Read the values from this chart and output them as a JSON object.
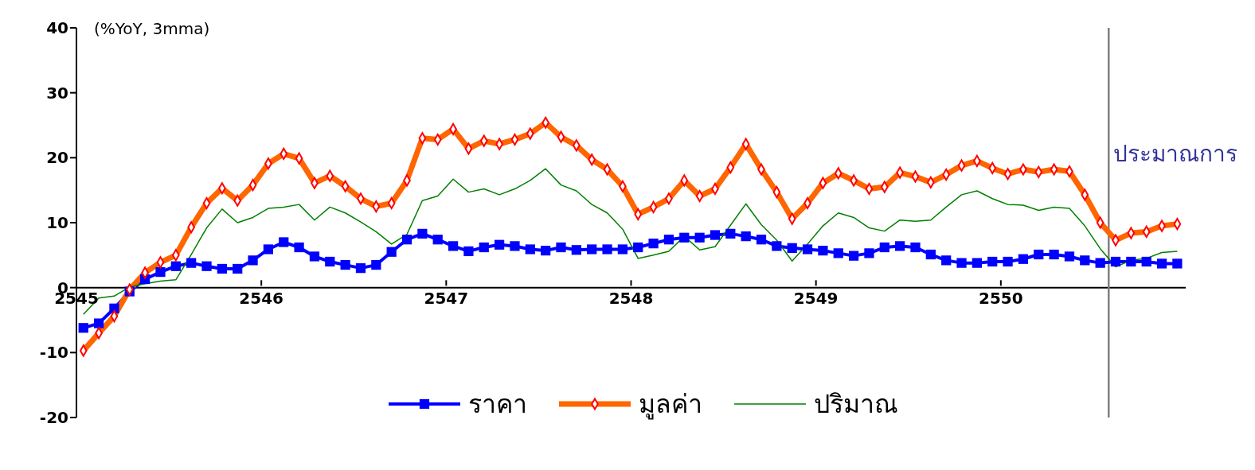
{
  "chart_data": {
    "type": "line",
    "ylabel": "(%YoY, 3mma)",
    "x": [
      "2545-01-15",
      "2545-02-15",
      "2545-03-15",
      "2545-04-15",
      "2545-05-15",
      "2545-06-15",
      "2545-07-15",
      "2545-08-15",
      "2545-09-15",
      "2545-10-15",
      "2545-11-15",
      "2545-12-15",
      "2546-01-15",
      "2546-02-15",
      "2546-03-15",
      "2546-04-15",
      "2546-05-15",
      "2546-06-15",
      "2546-07-15",
      "2546-08-15",
      "2546-09-15",
      "2546-10-15",
      "2546-11-15",
      "2546-12-15",
      "2547-01-15",
      "2547-02-15",
      "2547-03-15",
      "2547-04-15",
      "2547-05-15",
      "2547-06-15",
      "2547-07-15",
      "2547-08-15",
      "2547-09-15",
      "2547-10-15",
      "2547-11-15",
      "2547-12-15",
      "2548-01-15",
      "2548-02-15",
      "2548-03-15",
      "2548-04-15",
      "2548-05-15",
      "2548-06-15",
      "2548-07-15",
      "2548-08-15",
      "2548-09-15",
      "2548-10-15",
      "2548-11-15",
      "2548-12-15",
      "2549-01-15",
      "2549-02-15",
      "2549-03-15",
      "2549-04-15",
      "2549-05-15",
      "2549-06-15",
      "2549-07-15",
      "2549-08-15",
      "2549-09-15",
      "2549-10-15",
      "2549-11-15",
      "2549-12-15",
      "2550-01-15",
      "2550-02-15",
      "2550-03-15",
      "2550-04-15",
      "2550-05-15",
      "2550-06-15",
      "2550-07-15",
      "2550-08-15",
      "2550-09-15",
      "2550-10-15",
      "2550-11-15",
      "2550-12-15"
    ],
    "series": [
      {
        "name": "ราคา",
        "color": "#0000ff",
        "marker": "square",
        "values": [
          -6.2,
          -5.5,
          -3.2,
          -0.6,
          1.3,
          2.4,
          3.3,
          3.8,
          3.3,
          2.9,
          2.9,
          4.2,
          5.9,
          7.0,
          6.2,
          4.8,
          4.0,
          3.5,
          3.0,
          3.5,
          5.5,
          7.4,
          8.3,
          7.4,
          6.4,
          5.6,
          6.2,
          6.6,
          6.4,
          5.9,
          5.7,
          6.2,
          5.8,
          5.9,
          5.9,
          5.9,
          6.2,
          6.8,
          7.4,
          7.7,
          7.7,
          8.1,
          8.3,
          7.9,
          7.4,
          6.4,
          6.1,
          5.9,
          5.7,
          5.3,
          4.9,
          5.3,
          6.2,
          6.4,
          6.2,
          5.1,
          4.2,
          3.8,
          3.8,
          4.0,
          4.0,
          4.4,
          5.1,
          5.1,
          4.8,
          4.2,
          3.8,
          4.0,
          4.0,
          4.0,
          3.7,
          3.7
        ]
      },
      {
        "name": "มูลค่า",
        "color": "#ff6600",
        "marker": "diamond",
        "values": [
          -9.7,
          -7.0,
          -4.4,
          -0.3,
          2.3,
          3.9,
          5.0,
          9.3,
          13.0,
          15.3,
          13.4,
          15.8,
          19.1,
          20.6,
          19.9,
          16.1,
          17.2,
          15.6,
          13.7,
          12.5,
          13.0,
          16.5,
          23.0,
          22.8,
          24.4,
          21.4,
          22.6,
          22.1,
          22.8,
          23.7,
          25.4,
          23.2,
          21.9,
          19.7,
          18.2,
          15.6,
          11.3,
          12.4,
          13.7,
          16.5,
          14.1,
          15.2,
          18.5,
          22.1,
          18.2,
          14.7,
          10.6,
          13.0,
          16.1,
          17.6,
          16.5,
          15.2,
          15.5,
          17.7,
          17.1,
          16.2,
          17.4,
          18.8,
          19.5,
          18.4,
          17.5,
          18.2,
          17.8,
          18.2,
          17.9,
          14.3,
          10.0,
          7.3,
          8.4,
          8.6,
          9.5,
          9.8
        ]
      },
      {
        "name": "ปริมาณ",
        "color": "#008000",
        "marker": "none",
        "values": [
          -4.1,
          -1.6,
          -1.3,
          0.1,
          0.6,
          1.0,
          1.2,
          5.1,
          9.2,
          12.1,
          10.0,
          10.8,
          12.2,
          12.4,
          12.8,
          10.4,
          12.4,
          11.5,
          10.1,
          8.6,
          6.7,
          8.2,
          13.4,
          14.1,
          16.7,
          14.7,
          15.2,
          14.3,
          15.2,
          16.5,
          18.3,
          15.8,
          14.9,
          12.8,
          11.5,
          9.0,
          4.5,
          5.0,
          5.6,
          7.9,
          5.8,
          6.3,
          9.6,
          12.9,
          9.7,
          7.3,
          4.1,
          6.7,
          9.5,
          11.5,
          10.8,
          9.2,
          8.7,
          10.4,
          10.2,
          10.4,
          12.4,
          14.3,
          14.9,
          13.7,
          12.8,
          12.7,
          11.9,
          12.4,
          12.2,
          9.5,
          6.0,
          3.2,
          4.2,
          4.5,
          5.4,
          5.6
        ]
      }
    ],
    "xlim": [
      "2545",
      "2551"
    ],
    "xticks": [
      "2545",
      "2546",
      "2547",
      "2548",
      "2549",
      "2550"
    ],
    "ylim": [
      -20,
      40
    ],
    "yticks": [
      -20,
      -10,
      0,
      10,
      20,
      30,
      40
    ],
    "ref_lines": [
      {
        "axis": "x",
        "value": "2550-08-01",
        "label": "ประมาณการ",
        "color": "#808080"
      }
    ],
    "grid": false,
    "legend": "bottom"
  }
}
